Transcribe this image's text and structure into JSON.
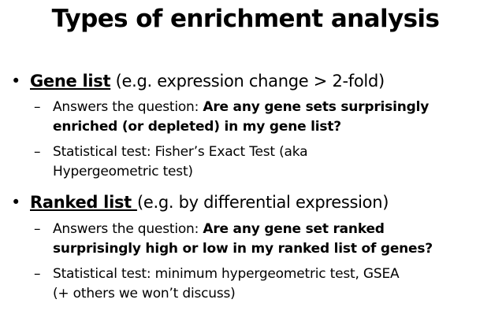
{
  "title": "Types of enrichment analysis",
  "bullet_marker": "•",
  "dash_marker": "–",
  "bullets": [
    {
      "term": "Gene list",
      "detail": " (e.g. expression change > 2-fold)",
      "subs": [
        {
          "prefix": "Answers the question: ",
          "bold_line1": "Are any gene sets surprisingly",
          "bold_line2": "enriched (or depleted) in my gene list?"
        },
        {
          "line1": "Statistical test: Fisher’s Exact Test (aka",
          "line2": "Hypergeometric test)"
        }
      ]
    },
    {
      "term": "Ranked list ",
      "detail": "(e.g. by differential expression)",
      "subs": [
        {
          "prefix": "Answers the question: ",
          "bold_line1": "Are any gene set ranked",
          "bold_line2": "surprisingly high or low in my ranked list of genes?"
        },
        {
          "line1": "Statistical test: minimum hypergeometric test, GSEA",
          "line2": "(+ others we won’t discuss)"
        }
      ]
    }
  ]
}
